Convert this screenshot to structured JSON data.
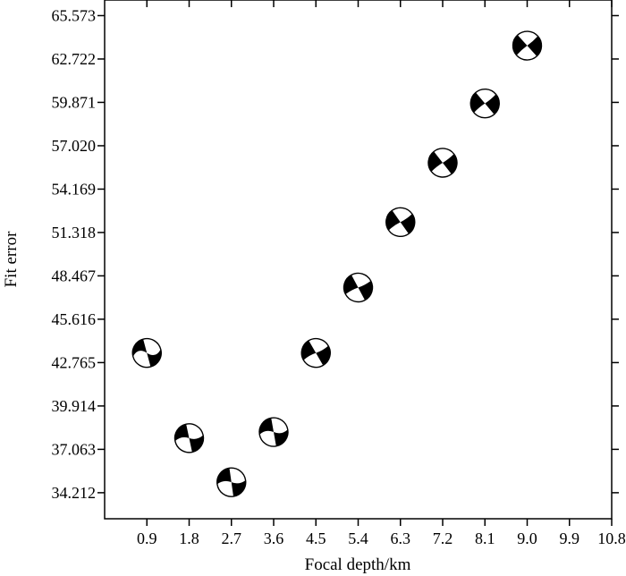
{
  "chart_data": {
    "type": "scatter",
    "marker": "focal-mechanism-beachball",
    "xlabel": "Focal depth/km",
    "ylabel": "Fit error",
    "xlim": [
      0,
      10.8
    ],
    "ylim": [
      32.5,
      66.6
    ],
    "x_ticks": [
      "0.9",
      "1.8",
      "2.7",
      "3.6",
      "4.5",
      "5.4",
      "6.3",
      "7.2",
      "8.1",
      "9.0",
      "9.9",
      "10.8"
    ],
    "y_ticks": [
      "34.212",
      "37.063",
      "39.914",
      "42.765",
      "45.616",
      "48.467",
      "51.318",
      "54.169",
      "57.020",
      "59.871",
      "62.722",
      "65.573"
    ],
    "points": [
      {
        "x": 0.9,
        "y": 43.4,
        "strike": -15,
        "pole_tilt": 0.55
      },
      {
        "x": 1.8,
        "y": 37.8,
        "strike": -12,
        "pole_tilt": 0.3
      },
      {
        "x": 2.7,
        "y": 34.9,
        "strike": -8,
        "pole_tilt": 0.28
      },
      {
        "x": 3.6,
        "y": 38.2,
        "strike": -10,
        "pole_tilt": 0.32
      },
      {
        "x": 4.5,
        "y": 43.4,
        "strike": -30,
        "pole_tilt": 0.1
      },
      {
        "x": 5.4,
        "y": 47.7,
        "strike": -28,
        "pole_tilt": 0.08
      },
      {
        "x": 6.3,
        "y": 52.0,
        "strike": -35,
        "pole_tilt": 0.08
      },
      {
        "x": 7.2,
        "y": 55.9,
        "strike": -38,
        "pole_tilt": 0.06
      },
      {
        "x": 8.1,
        "y": 59.8,
        "strike": -40,
        "pole_tilt": 0.06
      },
      {
        "x": 9.0,
        "y": 63.6,
        "strike": -42,
        "pole_tilt": 0.05
      }
    ]
  }
}
